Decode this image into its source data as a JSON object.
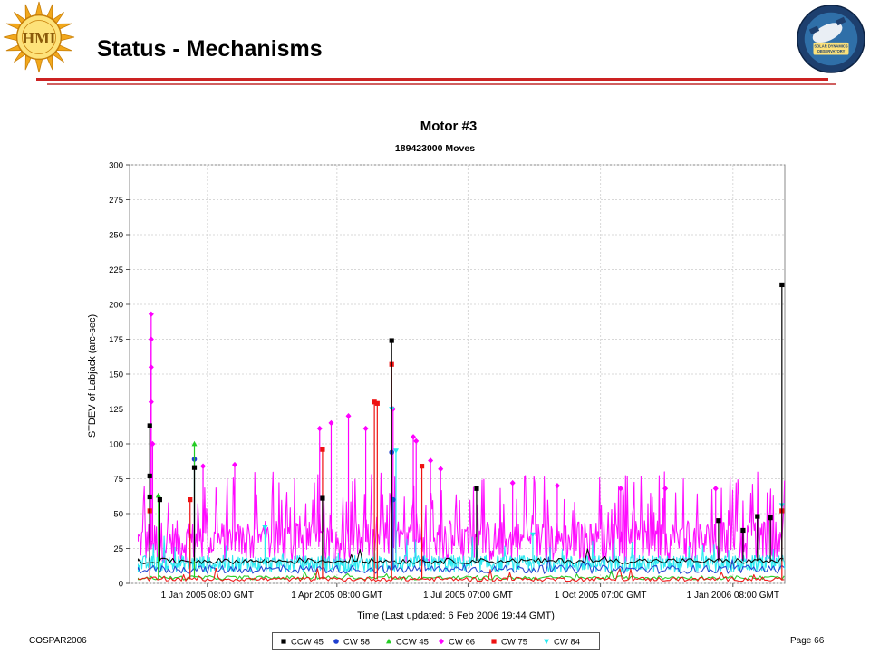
{
  "slide": {
    "title": "Status - Mechanisms",
    "footer_left": "COSPAR2006",
    "footer_right": "Page 66"
  },
  "logos": {
    "left_icon": "hmi-sun-logo-icon",
    "left_text": "HMI",
    "right_icon": "sdo-mission-logo-icon",
    "right_text": "SOLAR DYNAMICS OBSERVATORY"
  },
  "colors": {
    "title_rule": "#cc2222",
    "ccw45_black": "#000000",
    "cw58": "#1f3fcf",
    "ccw45_green": "#22cc22",
    "cw66": "#ff00ff",
    "cw75": "#ee1111",
    "cw84": "#22e8f0"
  },
  "chart_data": {
    "type": "line",
    "title": "Motor #3",
    "subtitle": "189423000 Moves",
    "ylabel": "STDEV of Labjack (arc-sec)",
    "xlabel": "Time (Last updated: 6 Feb 2006 19:44 GMT)",
    "xlim": [
      "2004-11-08",
      "2006-02-06"
    ],
    "ylim": [
      0,
      300
    ],
    "x_ticks": [
      {
        "date": "2005-01-01",
        "label": "1 Jan 2005 08:00 GMT"
      },
      {
        "date": "2005-04-01",
        "label": "1 Apr 2005 08:00 GMT"
      },
      {
        "date": "2005-07-01",
        "label": "1 Jul 2005 07:00 GMT"
      },
      {
        "date": "2005-10-01",
        "label": "1 Oct 2005 07:00 GMT"
      },
      {
        "date": "2006-01-01",
        "label": "1 Jan 2006 08:00 GMT"
      }
    ],
    "y_ticks": [
      0,
      25,
      50,
      75,
      100,
      125,
      150,
      175,
      200,
      225,
      250,
      275,
      300
    ],
    "grid": true,
    "legend_position": "bottom",
    "series": [
      {
        "name": "CCW 45",
        "color": "#000000",
        "marker": "square",
        "baseline": 16,
        "points": [
          [
            "2004-11-22",
            113
          ],
          [
            "2004-11-22",
            77
          ],
          [
            "2004-11-22",
            62
          ],
          [
            "2004-11-29",
            60
          ],
          [
            "2004-12-23",
            83
          ],
          [
            "2005-03-22",
            61
          ],
          [
            "2005-05-09",
            174
          ],
          [
            "2005-07-07",
            68
          ],
          [
            "2005-12-22",
            45
          ],
          [
            "2006-01-08",
            38
          ],
          [
            "2006-01-18",
            48
          ],
          [
            "2006-01-27",
            47
          ],
          [
            "2006-02-04",
            214
          ]
        ]
      },
      {
        "name": "CW 58",
        "color": "#1f3fcf",
        "marker": "circle",
        "baseline": 10,
        "points": [
          [
            "2004-12-23",
            89
          ],
          [
            "2005-05-09",
            94
          ],
          [
            "2005-05-10",
            60
          ]
        ]
      },
      {
        "name": "CCW 45",
        "color": "#22cc22",
        "marker": "triangle-up",
        "baseline": 4,
        "points": [
          [
            "2004-12-23",
            100
          ],
          [
            "2004-11-28",
            63
          ]
        ]
      },
      {
        "name": "CW 66",
        "color": "#ff00ff",
        "marker": "diamond",
        "baseline": 30,
        "points": [
          [
            "2004-11-23",
            193
          ],
          [
            "2004-11-23",
            175
          ],
          [
            "2004-11-23",
            155
          ],
          [
            "2004-11-23",
            130
          ],
          [
            "2004-11-24",
            100
          ],
          [
            "2004-12-29",
            84
          ],
          [
            "2005-01-20",
            85
          ],
          [
            "2005-03-20",
            111
          ],
          [
            "2005-03-28",
            115
          ],
          [
            "2005-04-09",
            120
          ],
          [
            "2005-04-21",
            111
          ],
          [
            "2005-05-10",
            125
          ],
          [
            "2005-05-24",
            105
          ],
          [
            "2005-05-26",
            102
          ],
          [
            "2005-06-05",
            88
          ],
          [
            "2005-06-12",
            82
          ],
          [
            "2005-08-01",
            72
          ],
          [
            "2005-09-01",
            70
          ],
          [
            "2005-10-15",
            68
          ],
          [
            "2005-11-15",
            68
          ],
          [
            "2005-12-20",
            68
          ]
        ]
      },
      {
        "name": "CW 75",
        "color": "#ee1111",
        "marker": "square",
        "baseline": 3,
        "points": [
          [
            "2004-11-22",
            52
          ],
          [
            "2004-12-20",
            60
          ],
          [
            "2005-03-22",
            96
          ],
          [
            "2005-04-27",
            130
          ],
          [
            "2005-04-29",
            129
          ],
          [
            "2005-05-09",
            157
          ],
          [
            "2005-05-30",
            84
          ],
          [
            "2006-02-04",
            52
          ]
        ]
      },
      {
        "name": "CW 84",
        "color": "#22e8f0",
        "marker": "triangle-down",
        "baseline": 14,
        "points": [
          [
            "2005-05-09",
            125
          ],
          [
            "2005-05-12",
            95
          ],
          [
            "2006-02-04",
            56
          ],
          [
            "2005-02-10",
            40
          ],
          [
            "2005-08-15",
            35
          ]
        ]
      }
    ]
  }
}
